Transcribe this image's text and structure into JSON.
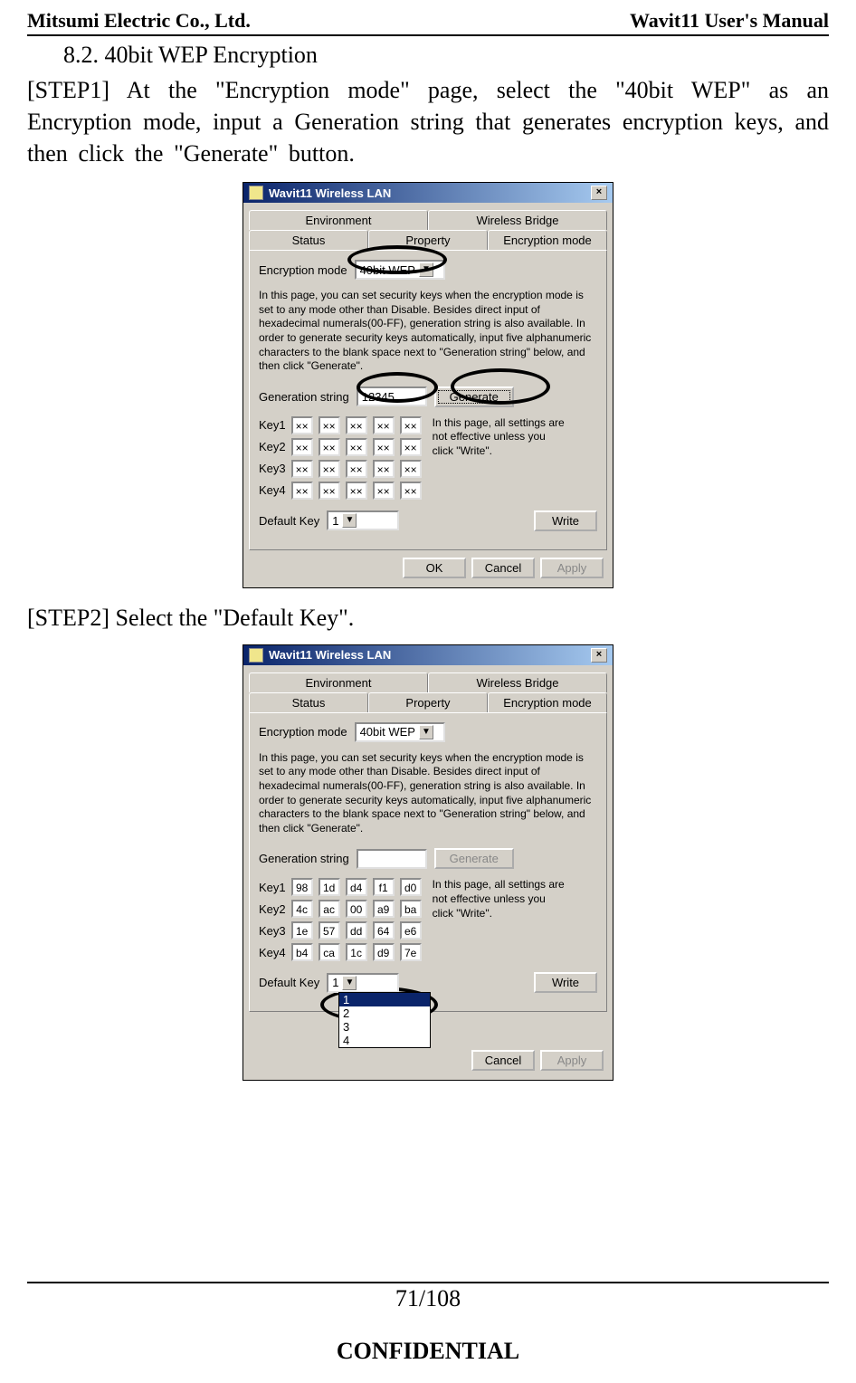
{
  "header": {
    "left": "Mitsumi Electric Co., Ltd.",
    "right": "Wavit11 User's Manual"
  },
  "section": "8.2. 40bit WEP Encryption",
  "step1_text": "[STEP1] At the \"Encryption mode\" page, select the \"40bit WEP\" as an Encryption mode, input a Generation string that generates encryption keys, and then click the \"Generate\" button.",
  "step2_text": "[STEP2] Select the \"Default Key\".",
  "window": {
    "title": "Wavit11 Wireless LAN",
    "close": "×",
    "tabs_top": [
      "Environment",
      "Wireless Bridge"
    ],
    "tabs_bottom": [
      "Status",
      "Property",
      "Encryption mode"
    ],
    "enc_label": "Encryption mode",
    "enc_value": "40bit WEP",
    "desc": "In this page, you can set security keys when the encryption mode is set to any mode other than Disable. Besides direct input of hexadecimal numerals(00-FF), generation string is also available. In order to generate security keys automatically, input five alphanumeric characters to the blank space next to \"Generation string\" below, and then click \"Generate\".",
    "gen_label": "Generation string",
    "gen_value1": "12345",
    "gen_value2": "",
    "generate": "Generate",
    "sidenote": "In this page, all settings are not effective unless you click \"Write\".",
    "keys_labels": [
      "Key1",
      "Key2",
      "Key3",
      "Key4"
    ],
    "keys1": [
      [
        "××",
        "××",
        "××",
        "××",
        "××"
      ],
      [
        "××",
        "××",
        "××",
        "××",
        "××"
      ],
      [
        "××",
        "××",
        "××",
        "××",
        "××"
      ],
      [
        "××",
        "××",
        "××",
        "××",
        "××"
      ]
    ],
    "keys2": [
      [
        "98",
        "1d",
        "d4",
        "f1",
        "d0"
      ],
      [
        "4c",
        "ac",
        "00",
        "a9",
        "ba"
      ],
      [
        "1e",
        "57",
        "dd",
        "64",
        "e6"
      ],
      [
        "b4",
        "ca",
        "1c",
        "d9",
        "7e"
      ]
    ],
    "default_key_label": "Default Key",
    "default_key_value": "1",
    "dropdown_options": [
      "1",
      "2",
      "3",
      "4"
    ],
    "write": "Write",
    "ok": "OK",
    "cancel": "Cancel",
    "apply": "Apply"
  },
  "footer": {
    "page": "71/108",
    "conf": "CONFIDENTIAL"
  }
}
